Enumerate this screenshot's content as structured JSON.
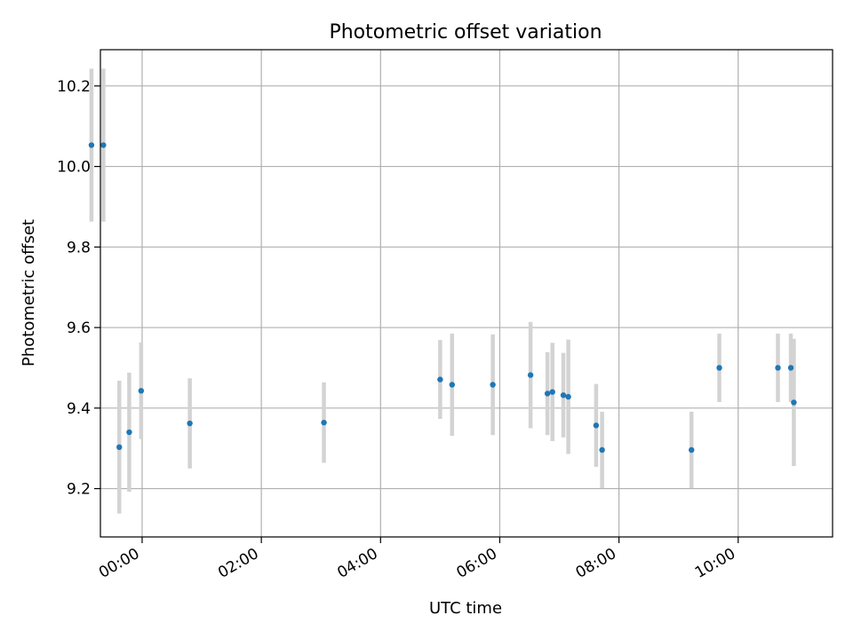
{
  "chart_data": {
    "type": "scatter",
    "title": "Photometric offset variation",
    "xlabel": "UTC time",
    "ylabel": "Photometric offset",
    "x_ticks": [
      "00:00",
      "02:00",
      "04:00",
      "06:00",
      "08:00",
      "10:00"
    ],
    "y_ticks": [
      "9.2",
      "9.4",
      "9.6",
      "9.8",
      "10.0",
      "10.2"
    ],
    "xlim": [
      "23:18",
      "11:35"
    ],
    "ylim": [
      9.08,
      10.29
    ],
    "grid": true,
    "marker_color": "#1f77b4",
    "errorbar_color": "#d3d3d3",
    "points": [
      {
        "x": "23:09",
        "y": 10.053,
        "err": 0.19
      },
      {
        "x": "23:21",
        "y": 10.053,
        "err": 0.19
      },
      {
        "x": "23:37",
        "y": 9.303,
        "err": 0.165
      },
      {
        "x": "23:47",
        "y": 9.34,
        "err": 0.148
      },
      {
        "x": "23:59",
        "y": 9.443,
        "err": 0.12
      },
      {
        "x": "00:48",
        "y": 9.362,
        "err": 0.112
      },
      {
        "x": "03:03",
        "y": 9.364,
        "err": 0.1
      },
      {
        "x": "05:00",
        "y": 9.471,
        "err": 0.098
      },
      {
        "x": "05:12",
        "y": 9.458,
        "err": 0.127
      },
      {
        "x": "05:53",
        "y": 9.458,
        "err": 0.125
      },
      {
        "x": "06:31",
        "y": 9.482,
        "err": 0.132
      },
      {
        "x": "06:48",
        "y": 9.436,
        "err": 0.103
      },
      {
        "x": "06:53",
        "y": 9.44,
        "err": 0.122
      },
      {
        "x": "07:04",
        "y": 9.432,
        "err": 0.105
      },
      {
        "x": "07:09",
        "y": 9.428,
        "err": 0.142
      },
      {
        "x": "07:37",
        "y": 9.357,
        "err": 0.103
      },
      {
        "x": "07:43",
        "y": 9.296,
        "err": 0.095
      },
      {
        "x": "09:13",
        "y": 9.296,
        "err": 0.095
      },
      {
        "x": "09:41",
        "y": 9.5,
        "err": 0.085
      },
      {
        "x": "10:40",
        "y": 9.5,
        "err": 0.085
      },
      {
        "x": "10:53",
        "y": 9.5,
        "err": 0.085
      },
      {
        "x": "10:56",
        "y": 9.414,
        "err": 0.158
      }
    ]
  }
}
